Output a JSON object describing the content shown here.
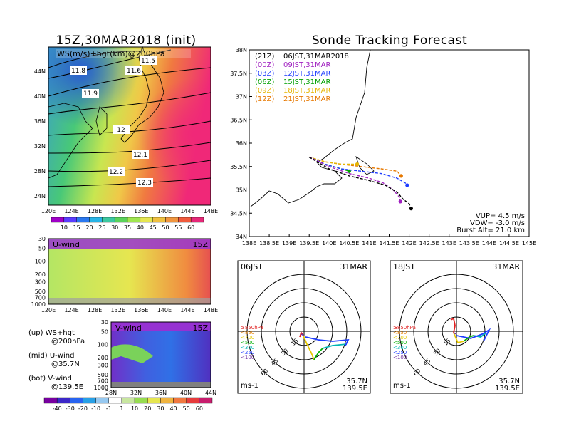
{
  "left": {
    "title": "15Z,30MAR2018 (init)",
    "map_label": "WS(m/s)+hgt(km)@200hPa",
    "lat_ticks": [
      "44N",
      "40N",
      "36N",
      "32N",
      "28N",
      "24N"
    ],
    "lon_ticks": [
      "120E",
      "124E",
      "128E",
      "132E",
      "136E",
      "140E",
      "144E",
      "148E"
    ],
    "contour_labels": [
      "11.5",
      "11.8",
      "11.6",
      "11.9",
      "12",
      "12.1",
      "12.2",
      "12.3"
    ],
    "ws_colorbar": [
      "10",
      "15",
      "20",
      "25",
      "30",
      "35",
      "40",
      "45",
      "50",
      "55",
      "60"
    ],
    "u_label": "U-wind",
    "u_time": "15Z",
    "v_label": "V-wind",
    "v_time": "15Z",
    "p_ticks": [
      "30",
      "50",
      "100",
      "200",
      "300",
      "500",
      "700",
      "1000"
    ],
    "v_lat_ticks": [
      "28N",
      "32N",
      "36N",
      "40N",
      "44N"
    ],
    "uv_colorbar": [
      "-40",
      "-30",
      "-20",
      "-10",
      "-1",
      "1",
      "10",
      "20",
      "30",
      "40",
      "50",
      "60"
    ],
    "desc_up": "(up) WS+hgt",
    "desc_up2": "@200hPa",
    "desc_mid": "(mid) U-wind",
    "desc_mid2": "@35.7N",
    "desc_bot": "(bot) V-wind",
    "desc_bot2": "@139.5E"
  },
  "right": {
    "title": "Sonde Tracking Forecast",
    "legend": [
      {
        "code": "(21Z)",
        "text": "06JST,31MAR2018",
        "color": "#000000"
      },
      {
        "code": "(00Z)",
        "text": "09JST,31MAR",
        "color": "#a020c0"
      },
      {
        "code": "(03Z)",
        "text": "12JST,31MAR",
        "color": "#1e3cff"
      },
      {
        "code": "(06Z)",
        "text": "15JST,31MAR",
        "color": "#00a000"
      },
      {
        "code": "(09Z)",
        "text": "18JST,31MAR",
        "color": "#e6b400"
      },
      {
        "code": "(12Z)",
        "text": "21JST,31MAR",
        "color": "#e67800"
      }
    ],
    "params": [
      "VUP= 4.5 m/s",
      "VDW= -3.0 m/s",
      "Burst Alt= 21.0 km"
    ]
  },
  "hodo1": {
    "time": "06JST",
    "date": "31MAR",
    "coords1": "35.7N",
    "coords2": "139.5E",
    "unit": "ms-1"
  },
  "hodo2": {
    "time": "18JST",
    "date": "31MAR",
    "coords1": "35.7N",
    "coords2": "139.5E",
    "unit": "ms-1"
  },
  "hodo_rings": [
    "15",
    "30",
    "45",
    "60"
  ],
  "hodo_levels": [
    {
      "text": "≥850hPa",
      "color": "#e02020"
    },
    {
      "text": "<850",
      "color": "#e68000"
    },
    {
      "text": "<700",
      "color": "#e6c800"
    },
    {
      "text": "<500",
      "color": "#00b000"
    },
    {
      "text": "<300",
      "color": "#00b4b4"
    },
    {
      "text": "<250",
      "color": "#1e3cff"
    },
    {
      "text": "<100",
      "color": "#7030a0"
    }
  ],
  "chart_data": {
    "type": "line",
    "title": "Sonde Tracking Forecast",
    "xlim": [
      138,
      145
    ],
    "ylim": [
      34,
      38
    ],
    "x_ticks": [
      "138E",
      "138.5E",
      "139E",
      "139.5E",
      "140E",
      "140.5E",
      "141E",
      "141.5E",
      "142E",
      "142.5E",
      "143E",
      "143.5E",
      "144E",
      "144.5E",
      "145E"
    ],
    "y_ticks": [
      "34N",
      "34.5N",
      "35N",
      "35.5N",
      "36N",
      "36.5N",
      "37N",
      "37.5N",
      "38N"
    ],
    "launch": {
      "lon": 139.5,
      "lat": 35.7
    },
    "series": [
      {
        "name": "06JST,31MAR2018",
        "color": "#000000",
        "x": [
          139.5,
          140.0,
          140.5,
          141.0,
          141.4,
          141.7,
          141.85,
          142.0,
          142.05
        ],
        "y": [
          35.7,
          35.45,
          35.3,
          35.2,
          35.1,
          34.95,
          34.8,
          34.7,
          34.6
        ]
      },
      {
        "name": "09JST,31MAR",
        "color": "#a020c0",
        "x": [
          139.5,
          140.0,
          140.5,
          141.0,
          141.35,
          141.6,
          141.75,
          141.78
        ],
        "y": [
          35.7,
          35.5,
          35.35,
          35.25,
          35.15,
          35.0,
          34.85,
          34.75
        ]
      },
      {
        "name": "12JST,31MAR",
        "color": "#1e3cff",
        "x": [
          139.5,
          139.9,
          140.3,
          140.8,
          141.3,
          141.7,
          141.9,
          141.95
        ],
        "y": [
          35.7,
          35.55,
          35.45,
          35.4,
          35.35,
          35.25,
          35.15,
          35.1
        ]
      },
      {
        "name": "15JST,31MAR",
        "color": "#00a000",
        "x": [
          139.5,
          139.9,
          140.3,
          140.5
        ],
        "y": [
          35.7,
          35.55,
          35.45,
          35.4
        ]
      },
      {
        "name": "18JST,31MAR",
        "color": "#e6b400",
        "x": [
          139.5,
          139.9,
          140.3,
          140.7
        ],
        "y": [
          35.7,
          35.6,
          35.55,
          35.55
        ]
      },
      {
        "name": "21JST,31MAR",
        "color": "#e67800",
        "x": [
          139.5,
          139.9,
          140.3,
          140.8,
          141.3,
          141.7,
          141.8
        ],
        "y": [
          35.7,
          35.6,
          35.55,
          35.5,
          35.45,
          35.4,
          35.3
        ]
      }
    ]
  }
}
